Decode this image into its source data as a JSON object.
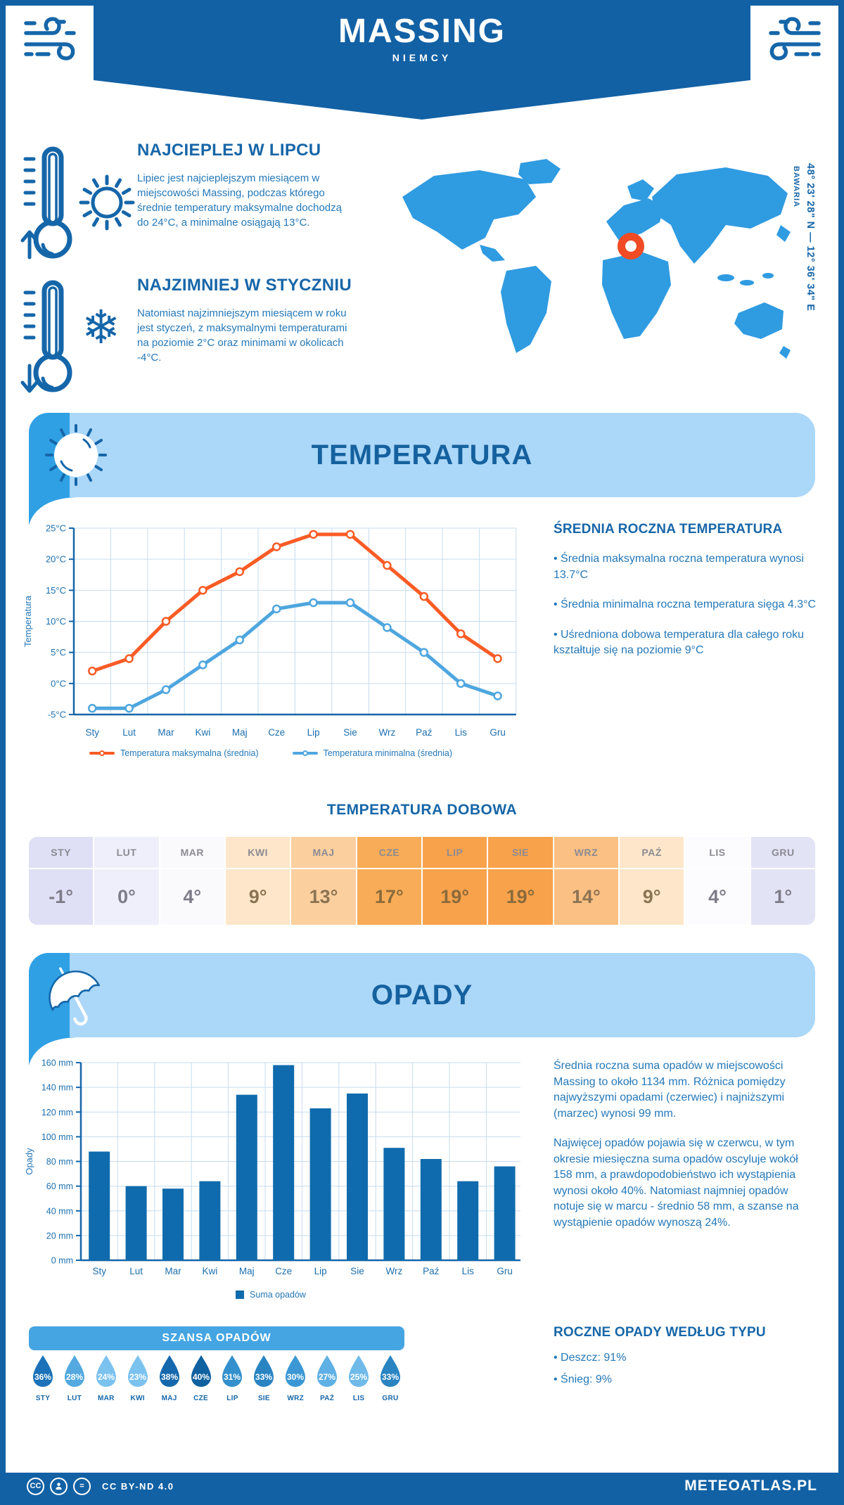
{
  "meta": {
    "location": "MASSING",
    "country": "NIEMCY",
    "region": "BAWARIA",
    "coordinates": "48° 23' 28\" N — 12° 36' 34\" E"
  },
  "colors": {
    "brand_dark_blue": "#1261A5",
    "band_light_blue": "#ABD7F8",
    "band_corner_blue": "#2FA0E4",
    "heading_blue": "#1766A8",
    "body_blue": "#2478B8",
    "max_line_orange": "#F95B25",
    "min_line_blue": "#4EA6DF",
    "bar_blue": "#0F6BAD",
    "map_land_blue": "#2F9BE1",
    "marker_orange": "#F04B23"
  },
  "icons": {
    "header_left": "wind-icon",
    "header_right": "wind-icon",
    "warm": [
      "thermometer-up-icon",
      "sun-icon"
    ],
    "cold": [
      "thermometer-down-icon",
      "snowflake-icon"
    ],
    "temperature_band": "sun-icon",
    "precipitation_band": "umbrella-icon",
    "chance_items": "raindrop-icon",
    "footer": [
      "cc-icon",
      "attribution-person-icon",
      "no-derivatives-icon"
    ],
    "snowflake_glyph": "❄"
  },
  "highlights": {
    "warm": {
      "title": "NAJCIEPLEJ W LIPCU",
      "text": "Lipiec jest najcieplejszym miesiącem w miejscowości Massing, podczas którego średnie temperatury maksymalne dochodzą do 24°C, a minimalne osiągają 13°C."
    },
    "cold": {
      "title": "NAJZIMNIEJ W STYCZNIU",
      "text": "Natomiast najzimniejszym miesiącem w roku jest styczeń, z maksymalnymi temperaturami na poziomie 2°C oraz minimami w okolicach -4°C."
    }
  },
  "temperature_section": {
    "title": "TEMPERATURA",
    "annual": {
      "title": "ŚREDNIA ROCZNA TEMPERATURA",
      "bullets": [
        "• Średnia maksymalna roczna temperatura wynosi 13.7°C",
        "• Średnia minimalna roczna temperatura sięga 4.3°C",
        "• Uśredniona dobowa temperatura dla całego roku kształtuje się na poziomie 9°C"
      ]
    },
    "daily": {
      "title": "TEMPERATURA DOBOWA",
      "cells": [
        {
          "month": "STY",
          "value": "-1°",
          "bg": "#DFDFF5",
          "fg": "#7E7C88"
        },
        {
          "month": "LUT",
          "value": "0°",
          "bg": "#EEEFFA",
          "fg": "#7E7C88"
        },
        {
          "month": "MAR",
          "value": "4°",
          "bg": "#FAFAFD",
          "fg": "#7E7C88"
        },
        {
          "month": "KWI",
          "value": "9°",
          "bg": "#FDE6C9",
          "fg": "#8C7352"
        },
        {
          "month": "MAJ",
          "value": "13°",
          "bg": "#FCCF9F",
          "fg": "#8C7352"
        },
        {
          "month": "CZE",
          "value": "17°",
          "bg": "#F9AC57",
          "fg": "#8A6B3B"
        },
        {
          "month": "LIP",
          "value": "19°",
          "bg": "#F9A24C",
          "fg": "#8A6B3B"
        },
        {
          "month": "SIE",
          "value": "19°",
          "bg": "#F9A24C",
          "fg": "#8A6B3B"
        },
        {
          "month": "WRZ",
          "value": "14°",
          "bg": "#FBC083",
          "fg": "#8C7352"
        },
        {
          "month": "PAŹ",
          "value": "9°",
          "bg": "#FDE6C9",
          "fg": "#8C7352"
        },
        {
          "month": "LIS",
          "value": "4°",
          "bg": "#FCFCFE",
          "fg": "#7E7C88"
        },
        {
          "month": "GRU",
          "value": "1°",
          "bg": "#E3E3F6",
          "fg": "#7E7C88"
        }
      ]
    }
  },
  "precipitation_section": {
    "title": "OPADY",
    "paragraphs": [
      "Średnia roczna suma opadów w miejscowości Massing to około 1134 mm. Różnica pomiędzy najwyższymi opadami (czerwiec) i najniższymi (marzec) wynosi 99 mm.",
      "Najwięcej opadów pojawia się w czerwcu, w tym okresie miesięczna suma opadów oscyluje wokół 158 mm, a prawdopodobieństwo ich wystąpienia wynosi około 40%. Natomiast najmniej opadów notuje się w marcu - średnio 58 mm, a szanse na wystąpienie opadów wynoszą 24%."
    ],
    "chance": {
      "title": "SZANSA OPADÓW",
      "items": [
        {
          "month": "STY",
          "percent": "36%",
          "color": "#1C72B8"
        },
        {
          "month": "LUT",
          "percent": "28%",
          "color": "#53A9E0"
        },
        {
          "month": "MAR",
          "percent": "24%",
          "color": "#7CC2EF"
        },
        {
          "month": "KWI",
          "percent": "23%",
          "color": "#7CC2EF"
        },
        {
          "month": "MAJ",
          "percent": "38%",
          "color": "#1668AC"
        },
        {
          "month": "CZE",
          "percent": "40%",
          "color": "#10619F"
        },
        {
          "month": "LIP",
          "percent": "31%",
          "color": "#3390CC"
        },
        {
          "month": "SIE",
          "percent": "33%",
          "color": "#2A84C2"
        },
        {
          "month": "WRZ",
          "percent": "30%",
          "color": "#3C98D4"
        },
        {
          "month": "PAŹ",
          "percent": "27%",
          "color": "#5FB0E4"
        },
        {
          "month": "LIS",
          "percent": "25%",
          "color": "#70BAEA"
        },
        {
          "month": "GRU",
          "percent": "33%",
          "color": "#2A84C2"
        }
      ]
    },
    "types": {
      "title": "ROCZNE OPADY WEDŁUG TYPU",
      "bullets": [
        "• Deszcz: 91%",
        "• Śnieg: 9%"
      ]
    }
  },
  "chart_data": [
    {
      "type": "line",
      "title": "TEMPERATURA",
      "categories": [
        "Sty",
        "Lut",
        "Mar",
        "Kwi",
        "Maj",
        "Cze",
        "Lip",
        "Sie",
        "Wrz",
        "Paź",
        "Lis",
        "Gru"
      ],
      "series": [
        {
          "name": "Temperatura maksymalna (średnia)",
          "color": "#F95B25",
          "values": [
            2,
            4,
            10,
            15,
            18,
            22,
            24,
            24,
            19,
            14,
            8,
            4
          ]
        },
        {
          "name": "Temperatura minimalna (średnia)",
          "color": "#4EA6DF",
          "values": [
            -4,
            -4,
            -1,
            3,
            7,
            12,
            13,
            13,
            9,
            5,
            0,
            -2
          ]
        }
      ],
      "xlabel": "",
      "ylabel": "Temperatura",
      "ylim": [
        -5,
        25
      ],
      "ytick_step": 5,
      "ytick_suffix": "°C",
      "grid": true,
      "legend_position": "bottom"
    },
    {
      "type": "bar",
      "title": "OPADY",
      "categories": [
        "Sty",
        "Lut",
        "Mar",
        "Kwi",
        "Maj",
        "Cze",
        "Lip",
        "Sie",
        "Wrz",
        "Paź",
        "Lis",
        "Gru"
      ],
      "series": [
        {
          "name": "Suma opadów",
          "color": "#0F6BAD",
          "values": [
            88,
            60,
            58,
            64,
            134,
            158,
            123,
            135,
            91,
            82,
            64,
            76
          ]
        }
      ],
      "xlabel": "",
      "ylabel": "Opady",
      "ylim": [
        0,
        160
      ],
      "ytick_step": 20,
      "ytick_suffix": " mm",
      "grid": true,
      "legend_position": "bottom"
    }
  ],
  "footer": {
    "license": "CC BY-ND 4.0",
    "site": "METEOATLAS.PL"
  }
}
